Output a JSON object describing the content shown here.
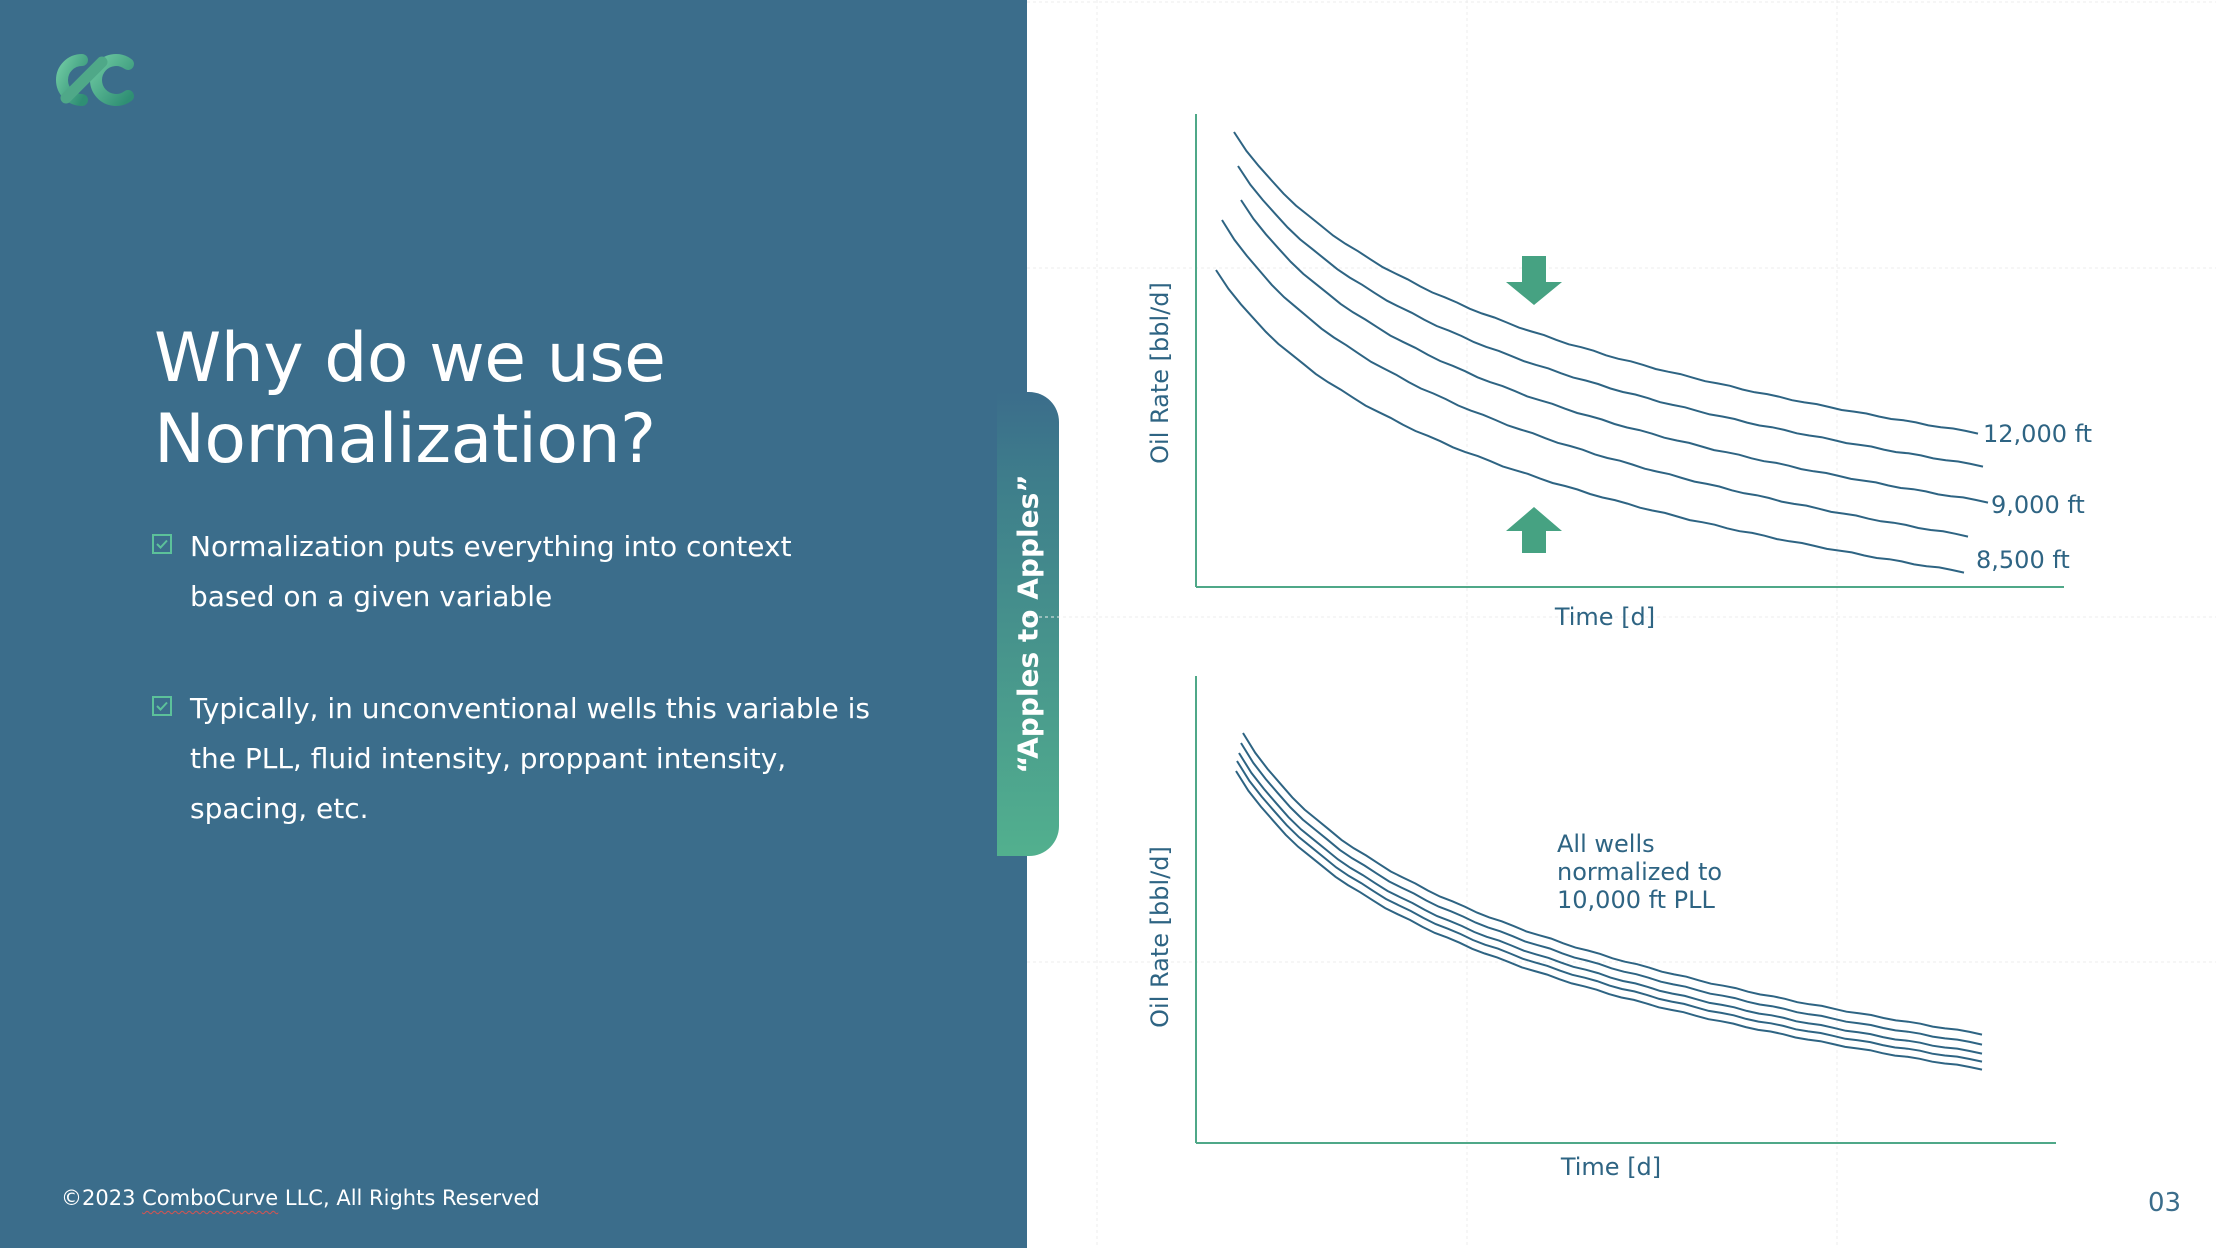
{
  "slide": {
    "title_line1": "Why do we use",
    "title_line2": "Normalization?",
    "bullets": [
      {
        "line1": "Normalization puts everything into context",
        "line2": "based on a given variable"
      },
      {
        "line1": "Typically, in unconventional wells this variable is",
        "line2": "the PLL, fluid intensity, proppant intensity,",
        "line3": "spacing, etc."
      }
    ],
    "footer_prefix": "©2023 ",
    "footer_brand": "ComboCurve",
    "footer_suffix": " LLC, All Rights Reserved",
    "tab_label": "“Apples to Apples”",
    "page_number": "03",
    "logo_icon": "combocurve-logo-icon",
    "check_icon": "checkbox-icon",
    "arrow_icons": [
      "arrow-down-icon",
      "arrow-up-icon"
    ]
  },
  "colors": {
    "panel": "#3b6d8b",
    "accent": "#4fa888",
    "curve": "#2e6483",
    "text_white": "#ffffff"
  },
  "chart_data": [
    {
      "type": "line",
      "title": "",
      "xlabel": "Time [d]",
      "ylabel": "Oil Rate [bbl/d]",
      "grid": false,
      "series": [
        {
          "name": "12,000 ft"
        },
        {
          "name": ""
        },
        {
          "name": "9,000 ft"
        },
        {
          "name": ""
        },
        {
          "name": "8,500 ft"
        }
      ]
    },
    {
      "type": "line",
      "title": "",
      "xlabel": "Time [d]",
      "ylabel": "Oil Rate [bbl/d]",
      "grid": false,
      "annotation": [
        "All wells",
        "normalized to",
        "10,000 ft PLL"
      ],
      "series": [
        {
          "name": ""
        },
        {
          "name": ""
        },
        {
          "name": ""
        },
        {
          "name": ""
        },
        {
          "name": ""
        }
      ]
    }
  ]
}
